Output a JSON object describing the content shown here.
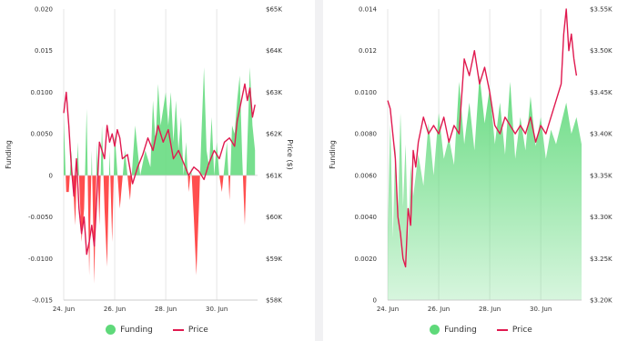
{
  "chart_data": [
    {
      "type": "area",
      "title": "",
      "xlabel": "",
      "ylabel": "Funding",
      "y2label": "Price ($)",
      "ylim": [
        -0.015,
        0.02
      ],
      "y2lim": [
        58000,
        65000
      ],
      "xlim": [
        0,
        7.6
      ],
      "x_ticks": [
        {
          "x": 0,
          "label": "24. Jun"
        },
        {
          "x": 2,
          "label": "26. Jun"
        },
        {
          "x": 4,
          "label": "28. Jun"
        },
        {
          "x": 6,
          "label": "30. Jun"
        }
      ],
      "y_ticks": [
        "-0.015",
        "-0.0100",
        "-0.0050",
        "0",
        "0.0050",
        "0.0100",
        "0.015",
        "0.020"
      ],
      "y_tick_values": [
        -0.015,
        -0.01,
        -0.005,
        0,
        0.005,
        0.01,
        0.015,
        0.02
      ],
      "y2_ticks": [
        "$58K",
        "$59K",
        "$60K",
        "$61K",
        "$62K",
        "$63K",
        "$64K",
        "$65K"
      ],
      "y2_tick_values": [
        58000,
        59000,
        60000,
        61000,
        62000,
        63000,
        64000,
        65000
      ],
      "grid": "vertical",
      "legend": "bottom-center",
      "colors": {
        "positive": "#5fd97a",
        "negative": "#ff3b3b",
        "price": "#e0194f"
      },
      "series": [
        {
          "name": "Funding",
          "kind": "area-signed",
          "x": [
            0,
            0.1,
            0.2,
            0.3,
            0.45,
            0.55,
            0.7,
            0.8,
            0.9,
            1.0,
            1.1,
            1.2,
            1.3,
            1.4,
            1.5,
            1.6,
            1.7,
            1.8,
            1.9,
            2.0,
            2.2,
            2.4,
            2.6,
            2.8,
            3.0,
            3.2,
            3.4,
            3.5,
            3.6,
            3.7,
            3.8,
            3.9,
            4.0,
            4.1,
            4.2,
            4.3,
            4.4,
            4.5,
            4.6,
            4.7,
            4.8,
            4.9,
            5.0,
            5.1,
            5.2,
            5.3,
            5.4,
            5.5,
            5.6,
            5.7,
            5.8,
            5.9,
            6.0,
            6.1,
            6.2,
            6.3,
            6.4,
            6.5,
            6.6,
            6.7,
            6.8,
            6.9,
            7.0,
            7.1,
            7.2,
            7.3,
            7.4,
            7.5
          ],
          "values": [
            0.007,
            -0.002,
            -0.002,
            0.003,
            -0.006,
            0.004,
            -0.008,
            -0.004,
            0.008,
            -0.012,
            0.003,
            -0.013,
            0.004,
            -0.006,
            0.006,
            -0.004,
            -0.011,
            0.003,
            -0.008,
            0.005,
            -0.004,
            0.003,
            -0.003,
            0.006,
            0.0,
            0.003,
            0.001,
            0.009,
            0.004,
            0.011,
            0.006,
            0.008,
            0.01,
            0.006,
            0.01,
            0.004,
            0.009,
            0.003,
            0.007,
            0.0,
            0.004,
            -0.002,
            0.001,
            -0.005,
            -0.012,
            -0.004,
            0.005,
            0.013,
            0.003,
            0.001,
            0.007,
            0.0,
            0.004,
            0.0,
            -0.002,
            0.001,
            0.004,
            -0.003,
            0.006,
            0.005,
            0.009,
            0.012,
            0.002,
            -0.006,
            0.004,
            0.013,
            0.006,
            0.003
          ]
        },
        {
          "name": "Price",
          "kind": "line",
          "x": [
            0,
            0.1,
            0.2,
            0.3,
            0.4,
            0.5,
            0.6,
            0.7,
            0.8,
            0.9,
            1.0,
            1.1,
            1.2,
            1.3,
            1.4,
            1.5,
            1.6,
            1.7,
            1.8,
            1.9,
            2.0,
            2.1,
            2.2,
            2.3,
            2.5,
            2.7,
            2.9,
            3.1,
            3.3,
            3.5,
            3.7,
            3.9,
            4.1,
            4.3,
            4.5,
            4.7,
            4.9,
            5.1,
            5.3,
            5.5,
            5.7,
            5.9,
            6.1,
            6.3,
            6.5,
            6.7,
            6.8,
            6.9,
            7.0,
            7.1,
            7.2,
            7.3,
            7.4,
            7.5
          ],
          "values": [
            62500,
            63000,
            62200,
            61200,
            60500,
            61400,
            60200,
            59600,
            60000,
            59100,
            59400,
            59800,
            59300,
            60500,
            61800,
            61600,
            61400,
            62200,
            61800,
            62000,
            61700,
            62100,
            61900,
            61400,
            61500,
            60800,
            61200,
            61500,
            61900,
            61600,
            62200,
            61800,
            62100,
            61400,
            61600,
            61300,
            61000,
            61200,
            61100,
            60900,
            61300,
            61600,
            61400,
            61800,
            61900,
            61700,
            62300,
            62600,
            62900,
            63200,
            62800,
            63100,
            62400,
            62700
          ]
        }
      ]
    },
    {
      "type": "area",
      "title": "",
      "xlabel": "",
      "ylabel": "Funding",
      "y2label": "",
      "ylim": [
        0,
        0.014
      ],
      "y2lim": [
        3.2,
        3.55
      ],
      "xlim": [
        0,
        7.6
      ],
      "x_ticks": [
        {
          "x": 0,
          "label": "24. Jun"
        },
        {
          "x": 2,
          "label": "26. Jun"
        },
        {
          "x": 4,
          "label": "28. Jun"
        },
        {
          "x": 6,
          "label": "30. Jun"
        }
      ],
      "y_ticks": [
        "0",
        "0.0020",
        "0.0040",
        "0.0060",
        "0.0080",
        "0.0100",
        "0.012",
        "0.014"
      ],
      "y_tick_values": [
        0,
        0.002,
        0.004,
        0.006,
        0.008,
        0.01,
        0.012,
        0.014
      ],
      "y2_ticks": [
        "$3.20K",
        "$3.25K",
        "$3.30K",
        "$3.35K",
        "$3.40K",
        "$3.45K",
        "$3.50K",
        "$3.55K"
      ],
      "y2_tick_values": [
        3.2,
        3.25,
        3.3,
        3.35,
        3.4,
        3.45,
        3.5,
        3.55
      ],
      "grid": "vertical",
      "legend": "bottom-center",
      "colors": {
        "positive": "#5fd97a",
        "price": "#e0194f"
      },
      "series": [
        {
          "name": "Funding",
          "kind": "area-gradient",
          "x": [
            0,
            0.1,
            0.2,
            0.3,
            0.4,
            0.5,
            0.6,
            0.7,
            0.8,
            0.9,
            1.0,
            1.2,
            1.4,
            1.6,
            1.8,
            2.0,
            2.2,
            2.4,
            2.6,
            2.8,
            3.0,
            3.2,
            3.4,
            3.6,
            3.8,
            4.0,
            4.2,
            4.4,
            4.6,
            4.8,
            5.0,
            5.2,
            5.4,
            5.6,
            5.8,
            6.0,
            6.2,
            6.4,
            6.6,
            6.8,
            7.0,
            7.2,
            7.4,
            7.6
          ],
          "values": [
            0.0035,
            0.0085,
            0.003,
            0.0075,
            0.004,
            0.009,
            0.0045,
            0.0075,
            0.003,
            0.0065,
            0.005,
            0.007,
            0.0055,
            0.0085,
            0.006,
            0.009,
            0.0068,
            0.0078,
            0.0065,
            0.0105,
            0.0075,
            0.0095,
            0.0072,
            0.0108,
            0.0085,
            0.0102,
            0.0075,
            0.0095,
            0.007,
            0.0105,
            0.0068,
            0.0088,
            0.0072,
            0.0098,
            0.0074,
            0.0088,
            0.0068,
            0.0082,
            0.0075,
            0.0085,
            0.0095,
            0.008,
            0.0088,
            0.0075
          ]
        },
        {
          "name": "Price",
          "kind": "line",
          "x": [
            0,
            0.1,
            0.2,
            0.3,
            0.4,
            0.5,
            0.6,
            0.7,
            0.8,
            0.9,
            1.0,
            1.1,
            1.2,
            1.4,
            1.6,
            1.8,
            2.0,
            2.2,
            2.4,
            2.6,
            2.8,
            3.0,
            3.2,
            3.4,
            3.6,
            3.8,
            4.0,
            4.2,
            4.4,
            4.6,
            4.8,
            5.0,
            5.2,
            5.4,
            5.6,
            5.8,
            6.0,
            6.2,
            6.4,
            6.6,
            6.8,
            6.9,
            7.0,
            7.1,
            7.2,
            7.3,
            7.4
          ],
          "values": [
            3.44,
            3.43,
            3.4,
            3.37,
            3.3,
            3.28,
            3.25,
            3.24,
            3.31,
            3.29,
            3.38,
            3.36,
            3.39,
            3.42,
            3.4,
            3.41,
            3.4,
            3.42,
            3.39,
            3.41,
            3.4,
            3.49,
            3.47,
            3.5,
            3.46,
            3.48,
            3.45,
            3.41,
            3.4,
            3.42,
            3.41,
            3.4,
            3.41,
            3.4,
            3.42,
            3.39,
            3.41,
            3.4,
            3.42,
            3.44,
            3.46,
            3.52,
            3.55,
            3.5,
            3.52,
            3.49,
            3.47
          ]
        }
      ]
    }
  ],
  "legend": {
    "funding_label": "Funding",
    "price_label": "Price"
  }
}
